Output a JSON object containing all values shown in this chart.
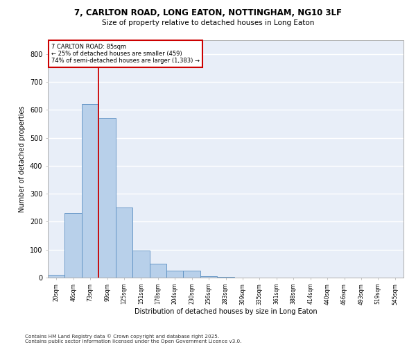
{
  "title_line1": "7, CARLTON ROAD, LONG EATON, NOTTINGHAM, NG10 3LF",
  "title_line2": "Size of property relative to detached houses in Long Eaton",
  "xlabel": "Distribution of detached houses by size in Long Eaton",
  "ylabel": "Number of detached properties",
  "bar_labels": [
    "20sqm",
    "46sqm",
    "73sqm",
    "99sqm",
    "125sqm",
    "151sqm",
    "178sqm",
    "204sqm",
    "230sqm",
    "256sqm",
    "283sqm",
    "309sqm",
    "335sqm",
    "361sqm",
    "388sqm",
    "414sqm",
    "440sqm",
    "466sqm",
    "493sqm",
    "519sqm",
    "545sqm"
  ],
  "bar_values": [
    10,
    232,
    620,
    570,
    250,
    97,
    50,
    24,
    24,
    5,
    2,
    0,
    0,
    0,
    0,
    0,
    0,
    0,
    0,
    0,
    0
  ],
  "bar_color": "#b8d0ea",
  "bar_edgecolor": "#5a8fc2",
  "bg_color": "#e8eef8",
  "grid_color": "#ffffff",
  "annotation_title": "7 CARLTON ROAD: 85sqm",
  "annotation_line2": "← 25% of detached houses are smaller (459)",
  "annotation_line3": "74% of semi-detached houses are larger (1,383) →",
  "annotation_box_color": "#ffffff",
  "annotation_border_color": "#cc0000",
  "redline_index": 2.5,
  "ylim": [
    0,
    850
  ],
  "yticks": [
    0,
    100,
    200,
    300,
    400,
    500,
    600,
    700,
    800
  ],
  "footnote_line1": "Contains HM Land Registry data © Crown copyright and database right 2025.",
  "footnote_line2": "Contains public sector information licensed under the Open Government Licence v3.0."
}
